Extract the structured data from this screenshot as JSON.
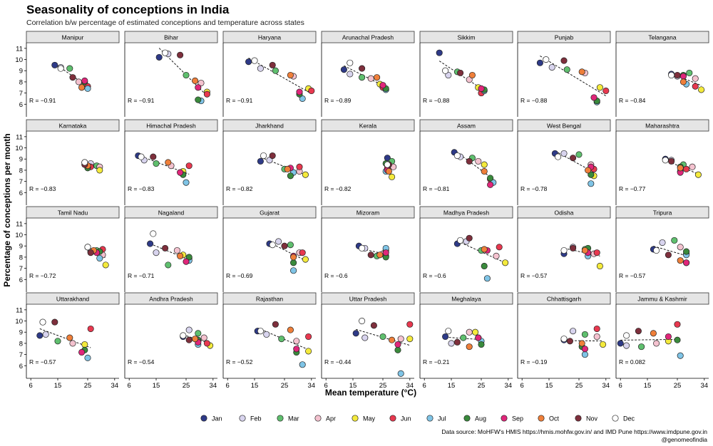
{
  "chart_data": {
    "type": "scatter",
    "title": "Seasonality of conceptions in India",
    "subtitle": "Correlation b/w percentage of estimated conceptions and temperature across states",
    "xlabel": "Mean temperature (°C)",
    "ylabel": "Percentage of conceptions per month",
    "xlim": [
      5,
      35
    ],
    "ylim": [
      5,
      11.5
    ],
    "x_ticks": [
      6,
      15,
      25,
      34
    ],
    "y_ticks": [
      6,
      7,
      8,
      9,
      10,
      11
    ],
    "months": [
      "Jan",
      "Feb",
      "Mar",
      "Apr",
      "May",
      "Jun",
      "Jul",
      "Aug",
      "Sep",
      "Oct",
      "Nov",
      "Dec"
    ],
    "month_colors": [
      "#2e3a87",
      "#d8d4ee",
      "#5fbf6e",
      "#f4c2cf",
      "#f4ea3c",
      "#e8384f",
      "#7fc4e6",
      "#3a8a3c",
      "#e0267a",
      "#ef7f3a",
      "#7e2f3c",
      "#ffffff"
    ],
    "source": "Data source: MoHFW's HMIS https://hmis.mohfw.gov.in/ and IMD Pune https://www.imdpune.gov.in",
    "credit": "@genomeofindia",
    "panels": [
      {
        "state": "Manipur",
        "r": "R = −0.91",
        "temps": [
          14,
          16,
          19,
          22,
          24,
          25,
          25,
          24,
          24,
          23,
          20,
          16
        ],
        "values": [
          9.5,
          9.3,
          9.2,
          8.0,
          7.8,
          7.6,
          7.4,
          8.0,
          8.1,
          7.5,
          8.4,
          9.2
        ]
      },
      {
        "state": "Bihar",
        "r": "R = −0.91",
        "temps": [
          16,
          19,
          25,
          30,
          32,
          32,
          30,
          29,
          29,
          28,
          23,
          18
        ],
        "values": [
          10.2,
          10.5,
          8.6,
          7.9,
          7.1,
          6.9,
          6.3,
          6.4,
          7.5,
          8.1,
          10.4,
          10.6
        ]
      },
      {
        "state": "Haryana",
        "r": "R = −0.91",
        "temps": [
          13,
          17,
          22,
          28,
          33,
          34,
          31,
          30,
          30,
          27,
          21,
          15
        ],
        "values": [
          9.8,
          9.2,
          9.0,
          8.5,
          7.4,
          7.2,
          6.5,
          6.9,
          7.1,
          8.6,
          9.5,
          9.9
        ]
      },
      {
        "state": "Arunachal Pradesh",
        "r": "R = −0.89",
        "temps": [
          12,
          14,
          18,
          21,
          24,
          25,
          26,
          26,
          25,
          23,
          18,
          14
        ],
        "values": [
          9.1,
          8.7,
          8.4,
          8.3,
          7.8,
          7.5,
          7.3,
          7.4,
          7.7,
          8.4,
          9.2,
          9.7
        ]
      },
      {
        "state": "Sikkim",
        "r": "R = −0.88",
        "temps": [
          11,
          14,
          17,
          21,
          24,
          25,
          26,
          26,
          25,
          22,
          18,
          13
        ],
        "values": [
          10.6,
          8.6,
          8.9,
          8.2,
          7.5,
          7.0,
          7.2,
          7.3,
          7.4,
          8.6,
          8.8,
          9.0
        ]
      },
      {
        "state": "Punjab",
        "r": "R = −0.88",
        "temps": [
          12,
          16,
          21,
          27,
          32,
          34,
          31,
          31,
          30,
          26,
          20,
          14
        ],
        "values": [
          9.7,
          9.3,
          9.1,
          8.8,
          7.5,
          7.2,
          6.2,
          6.3,
          6.6,
          8.9,
          9.9,
          10.0
        ]
      },
      {
        "state": "Telangana",
        "r": "R = −0.84",
        "temps": [
          23,
          25,
          29,
          31,
          33,
          31,
          28,
          27,
          27,
          27,
          25,
          23
        ],
        "values": [
          8.7,
          8.5,
          8.8,
          8.3,
          7.3,
          7.6,
          7.8,
          8.6,
          8.5,
          8.0,
          8.6,
          8.6
        ]
      },
      {
        "state": "Karnataka",
        "r": "R = −0.83",
        "temps": [
          24,
          26,
          28,
          29,
          29,
          26,
          25,
          25,
          25,
          25,
          24,
          24
        ],
        "values": [
          8.7,
          8.6,
          8.4,
          8.3,
          8.0,
          8.3,
          8.3,
          8.2,
          8.4,
          8.4,
          8.5,
          8.7
        ]
      },
      {
        "state": "Himachal Pradesh",
        "r": "R = −0.83",
        "temps": [
          9,
          11,
          15,
          20,
          24,
          26,
          25,
          24,
          23,
          19,
          14,
          10
        ],
        "values": [
          9.3,
          8.9,
          8.6,
          8.4,
          7.9,
          8.4,
          6.9,
          7.6,
          7.8,
          8.7,
          9.2,
          9.2
        ]
      },
      {
        "state": "Jharkhand",
        "r": "R = −0.82",
        "temps": [
          17,
          20,
          25,
          30,
          32,
          30,
          28,
          27,
          27,
          26,
          21,
          18
        ],
        "values": [
          8.8,
          8.9,
          8.1,
          7.9,
          7.6,
          8.3,
          7.8,
          7.5,
          8.2,
          8.1,
          9.3,
          9.3
        ]
      },
      {
        "state": "Kerala",
        "r": "R = −0.82",
        "temps": [
          26.5,
          27,
          28,
          28.5,
          28,
          26.5,
          26,
          26,
          26.5,
          27,
          27,
          26.5
        ],
        "values": [
          9.1,
          8.6,
          8.8,
          8.3,
          7.4,
          8.2,
          7.9,
          8.6,
          8.0,
          7.9,
          8.5,
          8.5
        ]
      },
      {
        "state": "Assam",
        "r": "R = −0.81",
        "temps": [
          16,
          18,
          22,
          24,
          26,
          28,
          29,
          28,
          28,
          26,
          21,
          17
        ],
        "values": [
          9.6,
          9.2,
          9.1,
          8.8,
          8.5,
          7.2,
          6.9,
          7.3,
          6.7,
          7.9,
          8.8,
          9.3
        ]
      },
      {
        "state": "West Bengal",
        "r": "R = −0.78",
        "temps": [
          17,
          20,
          25,
          29,
          30,
          30,
          29,
          29,
          29,
          28,
          23,
          18
        ],
        "values": [
          9.5,
          9.5,
          9.4,
          8.5,
          7.5,
          8.1,
          6.8,
          7.6,
          8.3,
          8.0,
          9.1,
          9.2
        ]
      },
      {
        "state": "Maharashtra",
        "r": "R = −0.77",
        "temps": [
          21,
          23,
          27,
          30,
          32,
          28,
          26,
          26,
          26,
          26,
          23,
          21
        ],
        "values": [
          9.0,
          8.9,
          8.5,
          8.3,
          7.6,
          8.1,
          7.9,
          8.3,
          7.8,
          8.2,
          8.8,
          8.9
        ]
      },
      {
        "state": "Tamil Nadu",
        "r": "R = −0.72",
        "temps": [
          25,
          26,
          28,
          30,
          31,
          30,
          29,
          29,
          28,
          27,
          26,
          25
        ],
        "values": [
          8.9,
          8.5,
          8.6,
          8.2,
          7.3,
          8.7,
          7.9,
          8.5,
          8.4,
          8.6,
          8.4,
          8.9
        ]
      },
      {
        "state": "Nagaland",
        "r": "R = −0.71",
        "temps": [
          13,
          15,
          19,
          22,
          24,
          26,
          26,
          26,
          25,
          23,
          18,
          14
        ],
        "values": [
          9.2,
          8.4,
          7.3,
          8.6,
          8.2,
          7.9,
          7.7,
          8.0,
          7.6,
          8.1,
          8.8,
          10.1
        ]
      },
      {
        "state": "Gujarat",
        "r": "R = −0.69",
        "temps": [
          20,
          23,
          27,
          30,
          32,
          31,
          28,
          28,
          28,
          28,
          25,
          21
        ],
        "values": [
          9.2,
          9.4,
          9.1,
          8.4,
          7.8,
          8.4,
          6.8,
          7.5,
          8.1,
          8.0,
          9.0,
          9.1
        ]
      },
      {
        "state": "Mizoram",
        "r": "R = −0.6",
        "temps": [
          17,
          19,
          23,
          25,
          26,
          26,
          26,
          26,
          26,
          24,
          21,
          18
        ],
        "values": [
          9.0,
          8.8,
          8.1,
          8.3,
          8.6,
          8.1,
          8.8,
          8.0,
          8.4,
          8.2,
          8.2,
          8.8
        ]
      },
      {
        "state": "Madhya Pradesh",
        "r": "R = −0.6",
        "temps": [
          17,
          20,
          25,
          30,
          33,
          31,
          27,
          26,
          27,
          26,
          21,
          18
        ],
        "values": [
          9.2,
          9.4,
          8.6,
          8.1,
          7.5,
          8.9,
          6.1,
          7.2,
          8.6,
          8.7,
          9.7,
          9.5
        ]
      },
      {
        "state": "Odisha",
        "r": "R = −0.57",
        "temps": [
          20,
          23,
          27,
          30,
          32,
          31,
          28,
          28,
          28,
          27,
          23,
          20
        ],
        "values": [
          8.3,
          8.9,
          8.7,
          8.3,
          7.2,
          8.4,
          8.1,
          8.8,
          8.4,
          8.6,
          8.8,
          8.6
        ]
      },
      {
        "state": "Tripura",
        "r": "R = −0.57",
        "temps": [
          17,
          20,
          24,
          26,
          28,
          28,
          28,
          28,
          28,
          26,
          22,
          18
        ],
        "values": [
          8.7,
          9.3,
          9.5,
          8.9,
          8.3,
          7.5,
          8.2,
          8.5,
          7.5,
          7.7,
          8.2,
          8.6
        ]
      },
      {
        "state": "Uttarakhand",
        "r": "R = −0.57",
        "temps": [
          9,
          11,
          15,
          20,
          24,
          26,
          25,
          24,
          23,
          19,
          14,
          10
        ],
        "values": [
          8.7,
          8.8,
          8.2,
          8.0,
          7.9,
          9.3,
          6.7,
          7.4,
          7.2,
          8.5,
          9.9,
          9.9
        ]
      },
      {
        "state": "Andhra Pradesh",
        "r": "R = −0.54",
        "temps": [
          24,
          26,
          29,
          31,
          33,
          32,
          29,
          29,
          29,
          28,
          26,
          24
        ],
        "values": [
          8.6,
          9.2,
          8.9,
          8.5,
          7.8,
          8.0,
          7.9,
          8.3,
          8.1,
          8.4,
          8.3,
          8.7
        ]
      },
      {
        "state": "Rajasthan",
        "r": "R = −0.52",
        "temps": [
          16,
          19,
          24,
          29,
          33,
          33,
          31,
          29,
          29,
          27,
          22,
          17
        ],
        "values": [
          9.1,
          8.8,
          8.4,
          8.2,
          7.3,
          8.6,
          6.1,
          7.2,
          7.5,
          9.2,
          9.7,
          9.1
        ]
      },
      {
        "state": "Uttar Pradesh",
        "r": "R = −0.44",
        "temps": [
          16,
          19,
          25,
          31,
          34,
          34,
          31,
          30,
          30,
          28,
          22,
          18
        ],
        "values": [
          8.9,
          8.5,
          8.6,
          8.4,
          8.4,
          9.7,
          5.3,
          7.4,
          7.9,
          8.3,
          9.6,
          10.0
        ]
      },
      {
        "state": "Meghalaya",
        "r": "R = −0.21",
        "temps": [
          13,
          15,
          19,
          21,
          23,
          24,
          25,
          25,
          24,
          21,
          17,
          14
        ],
        "values": [
          8.6,
          8.0,
          8.5,
          9.0,
          9.0,
          8.5,
          8.2,
          7.9,
          8.5,
          7.7,
          8.1,
          9.1
        ]
      },
      {
        "state": "Chhattisgarh",
        "r": "R = −0.19",
        "temps": [
          20,
          23,
          27,
          31,
          33,
          31,
          27,
          26,
          27,
          26,
          22,
          20
        ],
        "values": [
          8.3,
          9.1,
          8.8,
          8.6,
          7.9,
          9.3,
          7.0,
          7.7,
          7.5,
          8.0,
          8.2,
          8.4
        ]
      },
      {
        "state": "Jammu & Kashmir",
        "r": "R = 0.082",
        "temps": [
          6,
          8,
          13,
          18,
          22,
          25,
          26,
          25,
          22,
          17,
          12,
          8
        ],
        "values": [
          8.0,
          7.8,
          7.7,
          8.0,
          8.2,
          9.7,
          6.9,
          8.3,
          8.6,
          8.9,
          9.1,
          8.7
        ]
      }
    ]
  }
}
